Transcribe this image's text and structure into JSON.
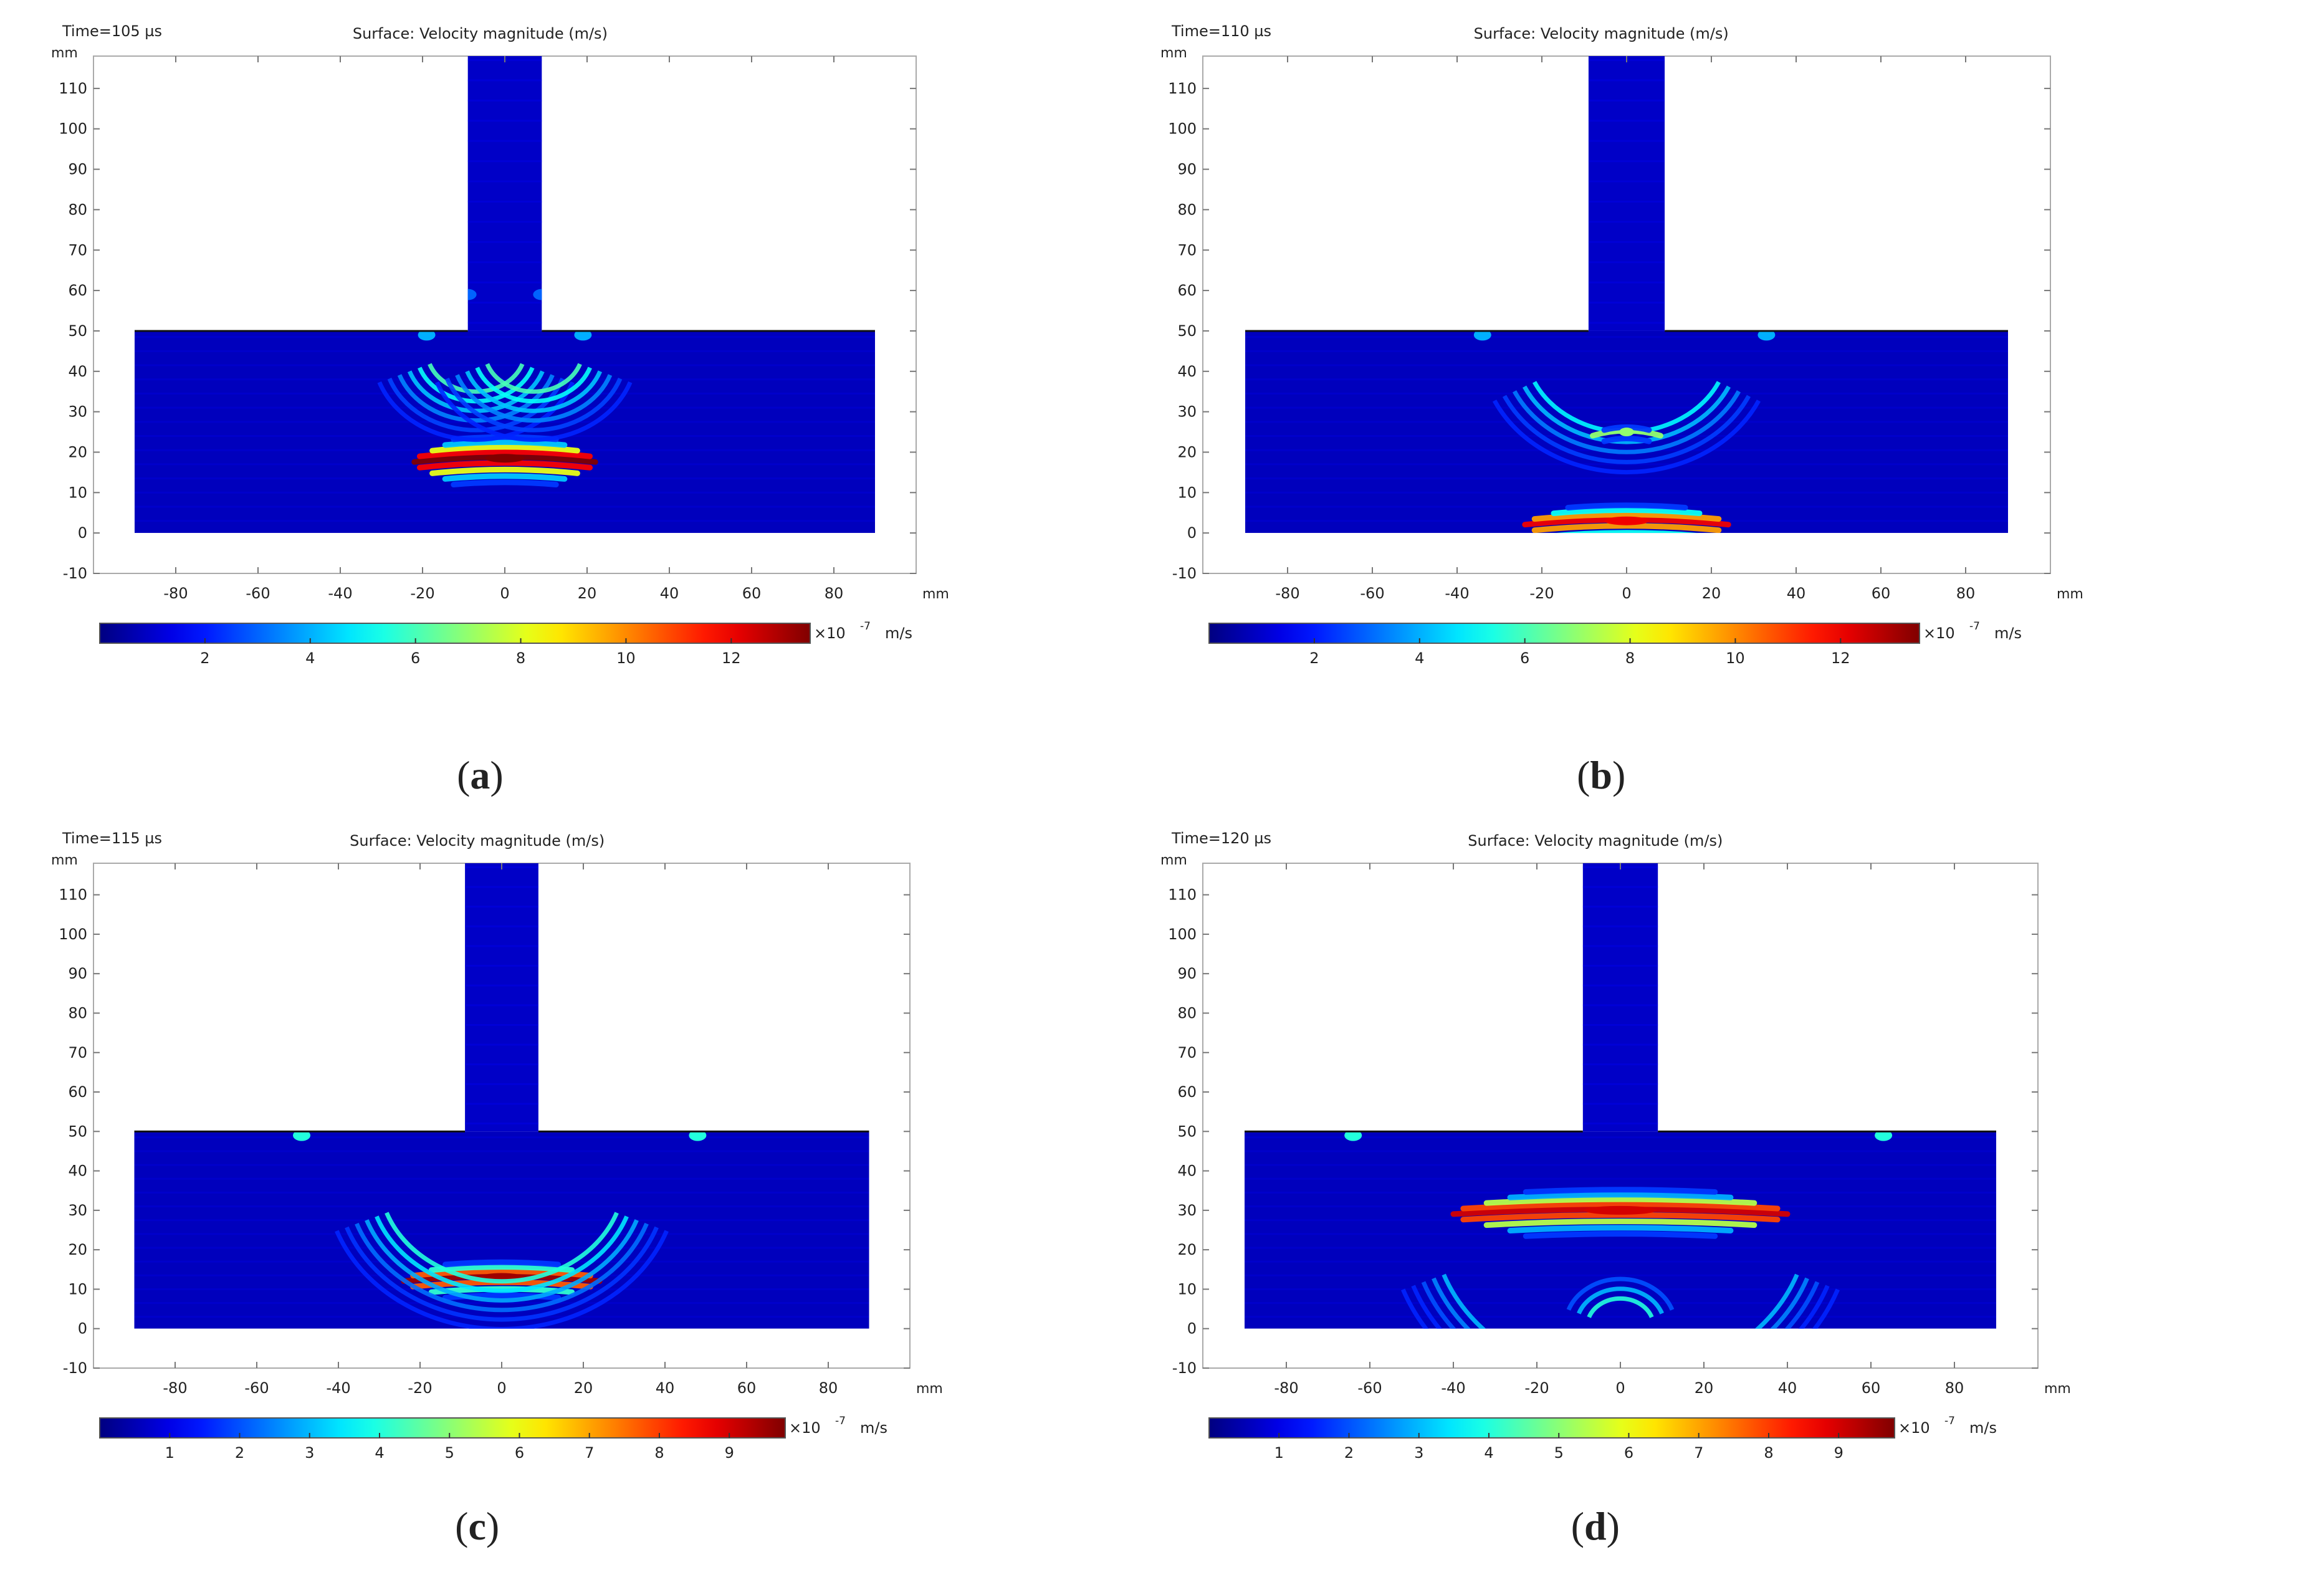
{
  "chart_data": [
    {
      "type": "heatmap",
      "panel": "(a)",
      "panel_letter": "a",
      "time_label": "Time=105 µs",
      "title": "Surface: Velocity magnitude (m/s)",
      "x_unit": "mm",
      "y_unit": "mm",
      "xlim": [
        -100,
        100
      ],
      "ylim": [
        -10,
        118
      ],
      "x_ticks": [
        -80,
        -60,
        -40,
        -20,
        0,
        20,
        40,
        60,
        80
      ],
      "y_ticks": [
        -10,
        0,
        10,
        20,
        30,
        40,
        50,
        60,
        70,
        80,
        90,
        100,
        110
      ],
      "geometry": {
        "base_x": [
          -90,
          90
        ],
        "base_y": [
          0,
          50
        ],
        "stem_x": [
          -9,
          9
        ],
        "stem_y": [
          50,
          118
        ]
      },
      "colorbar": {
        "min": 0,
        "max": 13.5,
        "ticks": [
          2,
          4,
          6,
          8,
          10,
          12
        ],
        "exponent": "×10",
        "exponent_power": "-7",
        "unit": "m/s"
      },
      "features": [
        {
          "kind": "focus",
          "x": 0,
          "y": 18.5,
          "peak": 13.5,
          "width_mm": 22,
          "bands": 9
        },
        {
          "kind": "arc",
          "x": -7,
          "y": 46,
          "radius_mm": 12,
          "start_deg": 200,
          "end_deg": 340,
          "strength": 6,
          "bands": 6
        },
        {
          "kind": "arc",
          "x": 7,
          "y": 46,
          "radius_mm": 12,
          "start_deg": 200,
          "end_deg": 340,
          "strength": 6,
          "bands": 6
        },
        {
          "kind": "spot",
          "x": -19,
          "y": 49,
          "strength": 4
        },
        {
          "kind": "spot",
          "x": 19,
          "y": 49,
          "strength": 4
        },
        {
          "kind": "spot",
          "x": -9,
          "y": 59,
          "strength": 3
        },
        {
          "kind": "spot",
          "x": 9,
          "y": 59,
          "strength": 3
        }
      ]
    },
    {
      "type": "heatmap",
      "panel": "(b)",
      "panel_letter": "b",
      "time_label": "Time=110 µs",
      "title": "Surface: Velocity magnitude (m/s)",
      "x_unit": "mm",
      "y_unit": "mm",
      "xlim": [
        -100,
        100
      ],
      "ylim": [
        -10,
        118
      ],
      "x_ticks": [
        -80,
        -60,
        -40,
        -20,
        0,
        20,
        40,
        60,
        80
      ],
      "y_ticks": [
        -10,
        0,
        10,
        20,
        30,
        40,
        50,
        60,
        70,
        80,
        90,
        100,
        110
      ],
      "geometry": {
        "base_x": [
          -90,
          90
        ],
        "base_y": [
          0,
          50
        ],
        "stem_x": [
          -9,
          9
        ],
        "stem_y": [
          50,
          118
        ]
      },
      "colorbar": {
        "min": 0,
        "max": 13.5,
        "ticks": [
          2,
          4,
          6,
          8,
          10,
          12
        ],
        "exponent": "×10",
        "exponent_power": "-7",
        "unit": "m/s"
      },
      "features": [
        {
          "kind": "focus",
          "x": 0,
          "y": 3,
          "peak": 12,
          "width_mm": 24,
          "bands": 7
        },
        {
          "kind": "arc",
          "x": 0,
          "y": 48,
          "radius_mm": 24,
          "start_deg": 205,
          "end_deg": 335,
          "strength": 5,
          "bands": 5
        },
        {
          "kind": "focus",
          "x": 0,
          "y": 25,
          "peak": 7,
          "width_mm": 8,
          "bands": 3
        },
        {
          "kind": "spot",
          "x": -34,
          "y": 49,
          "strength": 4
        },
        {
          "kind": "spot",
          "x": 33,
          "y": 49,
          "strength": 4
        }
      ]
    },
    {
      "type": "heatmap",
      "panel": "(c)",
      "panel_letter": "c",
      "time_label": "Time=115 µs",
      "title": "Surface: Velocity magnitude (m/s)",
      "x_unit": "mm",
      "y_unit": "mm",
      "xlim": [
        -100,
        100
      ],
      "ylim": [
        -10,
        118
      ],
      "x_ticks": [
        -80,
        -60,
        -40,
        -20,
        0,
        20,
        40,
        60,
        80
      ],
      "y_ticks": [
        -10,
        0,
        10,
        20,
        30,
        40,
        50,
        60,
        70,
        80,
        90,
        100,
        110
      ],
      "geometry": {
        "base_x": [
          -90,
          90
        ],
        "base_y": [
          0,
          50
        ],
        "stem_x": [
          -9,
          9
        ],
        "stem_y": [
          50,
          118
        ]
      },
      "colorbar": {
        "min": 0,
        "max": 9.8,
        "ticks": [
          1,
          2,
          3,
          4,
          5,
          6,
          7,
          8,
          9
        ],
        "exponent": "×10",
        "exponent_power": "-7",
        "unit": "m/s"
      },
      "features": [
        {
          "kind": "focus",
          "x": 0,
          "y": 13,
          "peak": 9.5,
          "width_mm": 24,
          "bands": 7
        },
        {
          "kind": "arc",
          "x": 0,
          "y": 40,
          "radius_mm": 30,
          "start_deg": 200,
          "end_deg": 340,
          "strength": 4,
          "bands": 6
        },
        {
          "kind": "spot",
          "x": -49,
          "y": 49,
          "strength": 4
        },
        {
          "kind": "spot",
          "x": 48,
          "y": 49,
          "strength": 4
        }
      ]
    },
    {
      "type": "heatmap",
      "panel": "(d)",
      "panel_letter": "d",
      "time_label": "Time=120 µs",
      "title": "Surface: Velocity magnitude (m/s)",
      "x_unit": "mm",
      "y_unit": "mm",
      "xlim": [
        -100,
        100
      ],
      "ylim": [
        -10,
        118
      ],
      "x_ticks": [
        -80,
        -60,
        -40,
        -20,
        0,
        20,
        40,
        60,
        80
      ],
      "y_ticks": [
        -10,
        0,
        10,
        20,
        30,
        40,
        50,
        60,
        70,
        80,
        90,
        100,
        110
      ],
      "geometry": {
        "base_x": [
          -90,
          90
        ],
        "base_y": [
          0,
          50
        ],
        "stem_x": [
          -9,
          9
        ],
        "stem_y": [
          50,
          118
        ]
      },
      "colorbar": {
        "min": 0,
        "max": 9.8,
        "ticks": [
          1,
          2,
          3,
          4,
          5,
          6,
          7,
          8,
          9
        ],
        "exponent": "×10",
        "exponent_power": "-7",
        "unit": "m/s"
      },
      "features": [
        {
          "kind": "focus",
          "x": 0,
          "y": 30,
          "peak": 9,
          "width_mm": 40,
          "bands": 9
        },
        {
          "kind": "arc",
          "x": 0,
          "y": 0,
          "radius_mm": 8,
          "start_deg": 20,
          "end_deg": 160,
          "strength": 4,
          "bands": 3
        },
        {
          "kind": "arc",
          "x": 0,
          "y": 30,
          "radius_mm": 45,
          "start_deg": 200,
          "end_deg": 340,
          "strength": 3,
          "bands": 5
        },
        {
          "kind": "spot",
          "x": -64,
          "y": 49,
          "strength": 4
        },
        {
          "kind": "spot",
          "x": 63,
          "y": 49,
          "strength": 4
        }
      ]
    }
  ]
}
